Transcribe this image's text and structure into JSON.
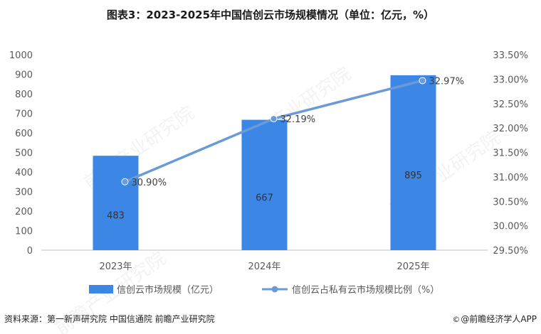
{
  "title": "图表3：2023-2025年中国信创云市场规模情况（单位：亿元，%）",
  "source": "资料来源：第一新声研究院 中国信通院  前瞻产业研究院",
  "credit": {
    "icon": "copyright-symbol",
    "text": "@前瞻经济学人APP"
  },
  "watermark": "前瞻产业研究院",
  "colors": {
    "bar": "#3c86e6",
    "line": "#6a9bd8",
    "axis": "#bfbfbf",
    "text": "#595959"
  },
  "chart_data": {
    "type": "bar",
    "categories": [
      "2023年",
      "2024年",
      "2025年"
    ],
    "series": [
      {
        "name": "信创云市场规模（亿元）",
        "type": "bar",
        "axis": "left",
        "values": [
          483,
          667,
          895
        ],
        "labels": [
          "483",
          "667",
          "895"
        ]
      },
      {
        "name": "信创云占私有云市场规模比例（%）",
        "type": "line",
        "axis": "right",
        "values": [
          30.9,
          32.19,
          32.97
        ],
        "labels": [
          "30.90%",
          "32.19%",
          "32.97%"
        ]
      }
    ],
    "left_axis": {
      "min": 0,
      "max": 1000,
      "step": 100,
      "ticks": [
        "0",
        "100",
        "200",
        "300",
        "400",
        "500",
        "600",
        "700",
        "800",
        "900",
        "1000"
      ]
    },
    "right_axis": {
      "min": 29.5,
      "max": 33.5,
      "step": 0.5,
      "ticks": [
        "29.50%",
        "30.00%",
        "30.50%",
        "31.00%",
        "31.50%",
        "32.00%",
        "32.50%",
        "33.00%",
        "33.50%"
      ]
    },
    "grid": false,
    "legend_position": "bottom"
  }
}
